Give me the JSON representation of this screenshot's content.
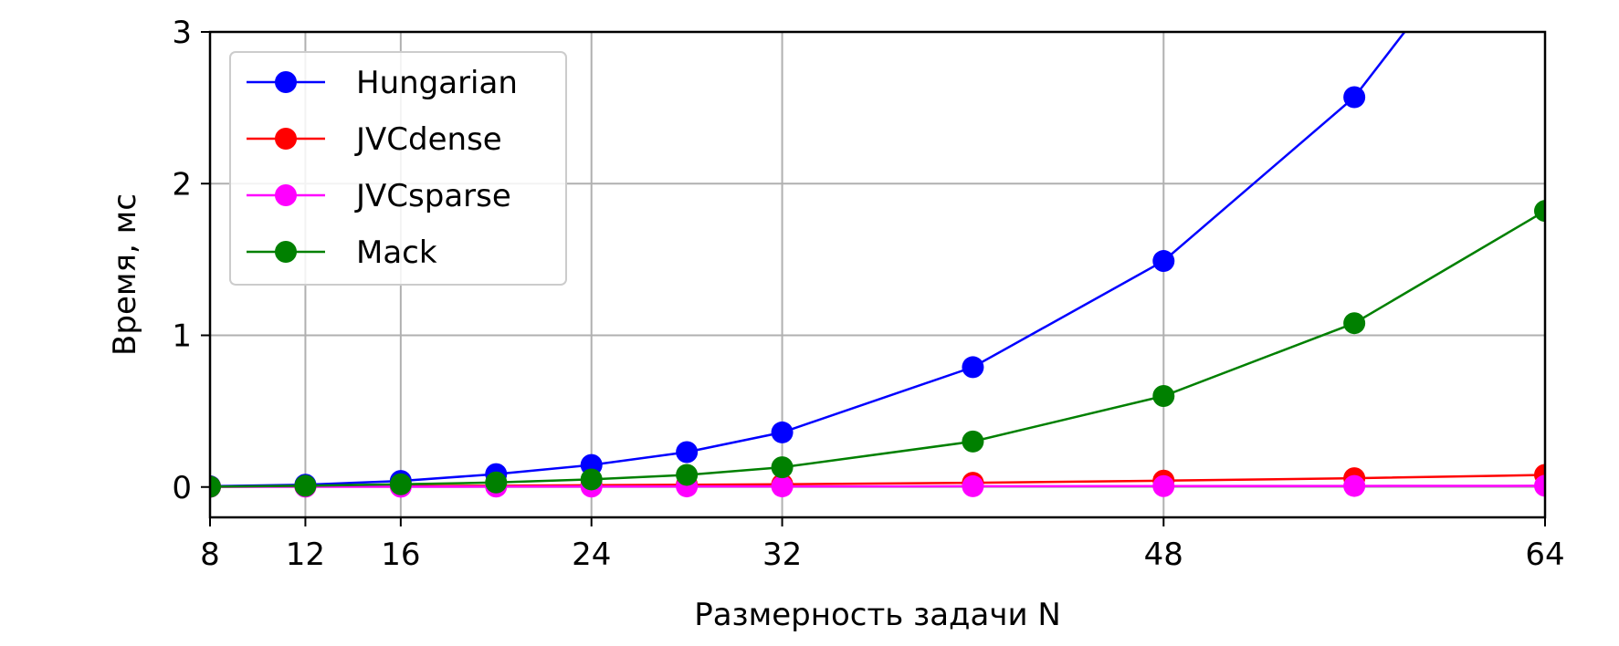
{
  "chart_data": {
    "type": "line",
    "title": "",
    "xlabel": "Размерность задачи N",
    "ylabel": "Время, мс",
    "xlim": [
      8,
      64
    ],
    "ylim": [
      -0.2,
      3
    ],
    "xticks": [
      8,
      12,
      16,
      24,
      32,
      48,
      64
    ],
    "xtick_labels": [
      "8",
      "12",
      "16",
      "24",
      "32",
      "48",
      "64"
    ],
    "yticks": [
      0,
      1,
      2,
      3
    ],
    "ytick_labels": [
      "0",
      "1",
      "2",
      "3"
    ],
    "grid": true,
    "legend_position": "top-left",
    "x": [
      8,
      12,
      16,
      20,
      24,
      28,
      32,
      40,
      48,
      56,
      64
    ],
    "series": [
      {
        "name": "Hungarian",
        "color": "#0000ff",
        "values": [
          0.005,
          0.015,
          0.04,
          0.085,
          0.145,
          0.23,
          0.36,
          0.79,
          1.49,
          2.57,
          4.2
        ]
      },
      {
        "name": "JVCdense",
        "color": "#ff0000",
        "values": [
          0.002,
          0.004,
          0.006,
          0.008,
          0.012,
          0.015,
          0.018,
          0.028,
          0.042,
          0.058,
          0.08
        ]
      },
      {
        "name": "JVCsparse",
        "color": "#ff00ff",
        "values": [
          0.001,
          0.002,
          0.002,
          0.003,
          0.003,
          0.004,
          0.004,
          0.005,
          0.006,
          0.007,
          0.008
        ]
      },
      {
        "name": "Mack",
        "color": "#008000",
        "values": [
          0.002,
          0.008,
          0.018,
          0.03,
          0.05,
          0.08,
          0.13,
          0.3,
          0.6,
          1.08,
          1.82
        ]
      }
    ]
  }
}
